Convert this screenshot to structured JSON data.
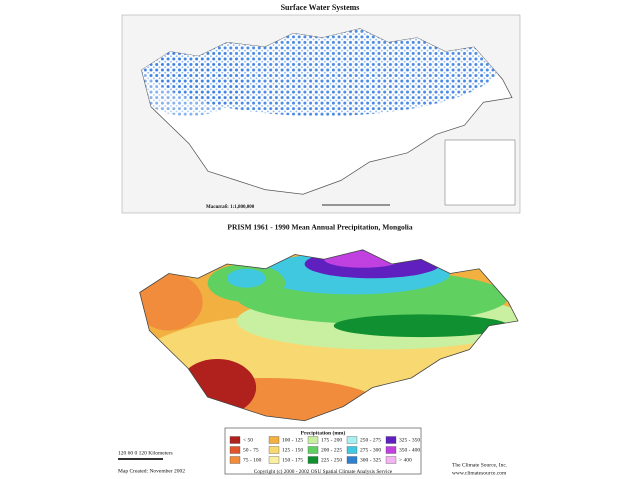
{
  "top_map": {
    "title": "Surface Water Systems",
    "scale": "Масштаб: 1:1,800,000"
  },
  "bottom_map": {
    "title": "PRISM 1961 - 1990  Mean Annual Precipitation, Mongolia",
    "legend": {
      "title": "Precipitation (mm)",
      "classes": [
        {
          "label": "< 50",
          "color": "#b0201c"
        },
        {
          "label": "50 - 75",
          "color": "#e0552c"
        },
        {
          "label": "75 - 100",
          "color": "#f08c3c"
        },
        {
          "label": "100 - 125",
          "color": "#f2b040"
        },
        {
          "label": "125 - 150",
          "color": "#f8d870"
        },
        {
          "label": "150 - 175",
          "color": "#f8f0a0"
        },
        {
          "label": "175 - 200",
          "color": "#c8f0a0"
        },
        {
          "label": "200 - 225",
          "color": "#60d060"
        },
        {
          "label": "225 - 250",
          "color": "#109030"
        },
        {
          "label": "250 - 275",
          "color": "#a8f0f0"
        },
        {
          "label": "275 - 300",
          "color": "#40c8e0"
        },
        {
          "label": "300 - 325",
          "color": "#3080d0"
        },
        {
          "label": "325 - 350",
          "color": "#6020c0"
        },
        {
          "label": "350 - 400",
          "color": "#c040e0"
        },
        {
          "label": "> 400",
          "color": "#f4b4f4"
        }
      ]
    },
    "scale_bar": "120 60  0      120 Kilometers",
    "created": "Map Created: November 2002",
    "copyright": "Copyright (c) 2000 - 2002 OSU Spatial Climate Analysis Service",
    "source": "The Climate Source, Inc.",
    "website": "www.climatesource.com"
  }
}
